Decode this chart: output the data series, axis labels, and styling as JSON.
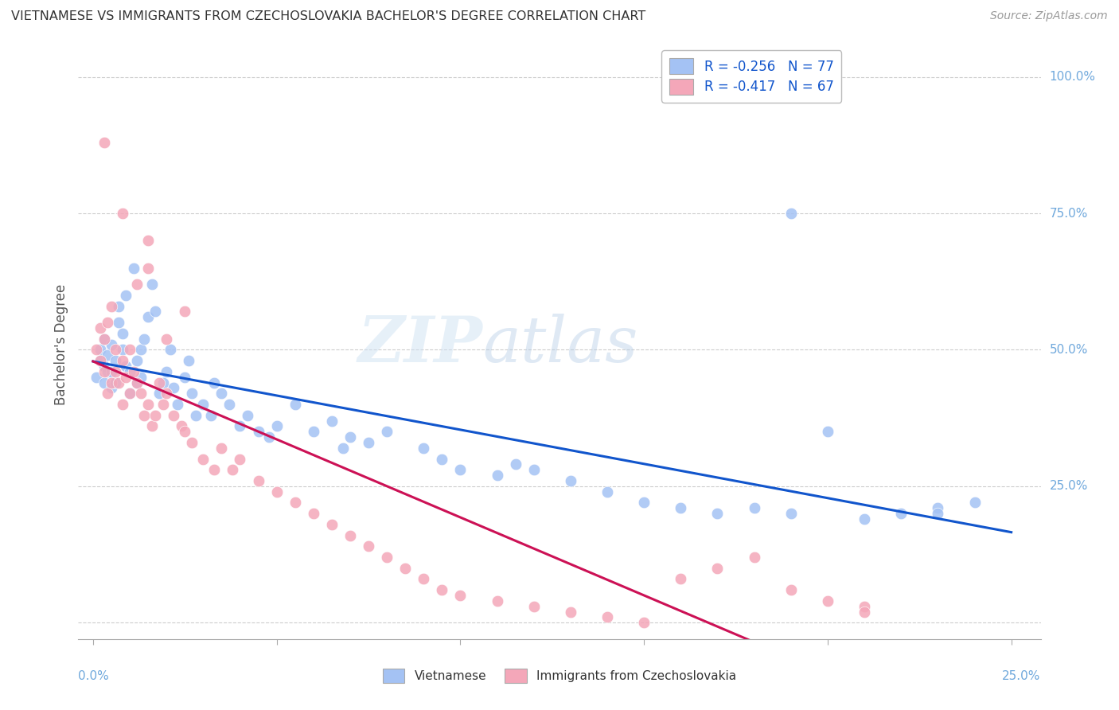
{
  "title": "VIETNAMESE VS IMMIGRANTS FROM CZECHOSLOVAKIA BACHELOR'S DEGREE CORRELATION CHART",
  "source": "Source: ZipAtlas.com",
  "ylabel": "Bachelor's Degree",
  "legend1_r": "-0.256",
  "legend1_n": "77",
  "legend2_r": "-0.417",
  "legend2_n": "67",
  "legend_bottom1": "Vietnamese",
  "legend_bottom2": "Immigrants from Czechoslovakia",
  "blue_color": "#a4c2f4",
  "pink_color": "#f4a7b9",
  "blue_line_color": "#1155cc",
  "pink_line_color": "#cc1155",
  "right_axis_color": "#6fa8dc",
  "watermark_zip_color": "#cfe2f3",
  "watermark_atlas_color": "#b7d4ea",
  "blue_R": -0.256,
  "blue_N": 77,
  "pink_R": -0.417,
  "pink_N": 67,
  "xlim": [
    0.0,
    0.25
  ],
  "ylim": [
    0.0,
    1.0
  ],
  "x_ticks": [
    0.0,
    0.05,
    0.1,
    0.15,
    0.2,
    0.25
  ],
  "y_ticks": [
    0.0,
    0.25,
    0.5,
    0.75,
    1.0
  ],
  "y_tick_labels": [
    "",
    "25.0%",
    "50.0%",
    "75.0%",
    "100.0%"
  ],
  "x_tick_labels_shown": [
    "0.0%",
    "25.0%"
  ],
  "blue_scatter_x": [
    0.001,
    0.002,
    0.002,
    0.003,
    0.003,
    0.003,
    0.004,
    0.004,
    0.005,
    0.005,
    0.005,
    0.006,
    0.006,
    0.007,
    0.007,
    0.008,
    0.008,
    0.009,
    0.009,
    0.01,
    0.01,
    0.011,
    0.012,
    0.012,
    0.013,
    0.013,
    0.014,
    0.015,
    0.016,
    0.017,
    0.018,
    0.019,
    0.02,
    0.021,
    0.022,
    0.023,
    0.025,
    0.026,
    0.027,
    0.028,
    0.03,
    0.032,
    0.033,
    0.035,
    0.037,
    0.04,
    0.042,
    0.045,
    0.048,
    0.05,
    0.055,
    0.06,
    0.065,
    0.068,
    0.07,
    0.075,
    0.08,
    0.09,
    0.095,
    0.1,
    0.11,
    0.115,
    0.12,
    0.13,
    0.14,
    0.15,
    0.16,
    0.17,
    0.18,
    0.19,
    0.2,
    0.21,
    0.22,
    0.23,
    0.24,
    0.19,
    0.23
  ],
  "blue_scatter_y": [
    0.45,
    0.48,
    0.5,
    0.44,
    0.47,
    0.52,
    0.46,
    0.49,
    0.43,
    0.46,
    0.51,
    0.44,
    0.48,
    0.55,
    0.58,
    0.5,
    0.53,
    0.47,
    0.6,
    0.42,
    0.46,
    0.65,
    0.44,
    0.48,
    0.5,
    0.45,
    0.52,
    0.56,
    0.62,
    0.57,
    0.42,
    0.44,
    0.46,
    0.5,
    0.43,
    0.4,
    0.45,
    0.48,
    0.42,
    0.38,
    0.4,
    0.38,
    0.44,
    0.42,
    0.4,
    0.36,
    0.38,
    0.35,
    0.34,
    0.36,
    0.4,
    0.35,
    0.37,
    0.32,
    0.34,
    0.33,
    0.35,
    0.32,
    0.3,
    0.28,
    0.27,
    0.29,
    0.28,
    0.26,
    0.24,
    0.22,
    0.21,
    0.2,
    0.21,
    0.2,
    0.35,
    0.19,
    0.2,
    0.21,
    0.22,
    0.75,
    0.2
  ],
  "pink_scatter_x": [
    0.001,
    0.002,
    0.002,
    0.003,
    0.003,
    0.004,
    0.004,
    0.005,
    0.005,
    0.006,
    0.006,
    0.007,
    0.008,
    0.008,
    0.009,
    0.01,
    0.01,
    0.011,
    0.012,
    0.013,
    0.014,
    0.015,
    0.016,
    0.017,
    0.018,
    0.019,
    0.02,
    0.022,
    0.024,
    0.025,
    0.027,
    0.03,
    0.033,
    0.035,
    0.038,
    0.04,
    0.045,
    0.05,
    0.055,
    0.06,
    0.065,
    0.07,
    0.075,
    0.08,
    0.085,
    0.09,
    0.095,
    0.1,
    0.11,
    0.12,
    0.13,
    0.14,
    0.15,
    0.16,
    0.17,
    0.18,
    0.19,
    0.2,
    0.21,
    0.008,
    0.012,
    0.015,
    0.003,
    0.015,
    0.02,
    0.025,
    0.21
  ],
  "pink_scatter_y": [
    0.5,
    0.54,
    0.48,
    0.52,
    0.46,
    0.55,
    0.42,
    0.58,
    0.44,
    0.5,
    0.46,
    0.44,
    0.4,
    0.48,
    0.45,
    0.5,
    0.42,
    0.46,
    0.44,
    0.42,
    0.38,
    0.4,
    0.36,
    0.38,
    0.44,
    0.4,
    0.42,
    0.38,
    0.36,
    0.35,
    0.33,
    0.3,
    0.28,
    0.32,
    0.28,
    0.3,
    0.26,
    0.24,
    0.22,
    0.2,
    0.18,
    0.16,
    0.14,
    0.12,
    0.1,
    0.08,
    0.06,
    0.05,
    0.04,
    0.03,
    0.02,
    0.01,
    0.0,
    0.08,
    0.1,
    0.12,
    0.06,
    0.04,
    0.03,
    0.75,
    0.62,
    0.7,
    0.88,
    0.65,
    0.52,
    0.57,
    0.02
  ]
}
